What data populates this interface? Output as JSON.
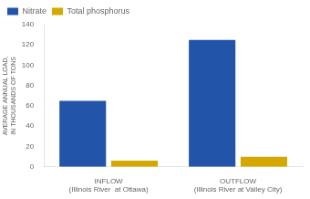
{
  "chart_data": {
    "type": "bar",
    "categories": [
      "INFLOW\n(Illinois River  at Ottawa)",
      "OUTFLOW\n(Illinois River at Valley City)"
    ],
    "series": [
      {
        "name": "Nitrate",
        "color": "#2255aa",
        "values": [
          65,
          125
        ]
      },
      {
        "name": "Total phosphorus",
        "color": "#d4a800",
        "values": [
          6,
          10
        ]
      }
    ],
    "ylabel": "AVERAGE ANNUAL LOAD,\nIN THOUSANDS OF TONS",
    "ylim": [
      0,
      140
    ],
    "yticks": [
      0,
      20,
      40,
      60,
      80,
      100,
      120,
      140
    ],
    "grid": false,
    "legend": "upper left"
  }
}
